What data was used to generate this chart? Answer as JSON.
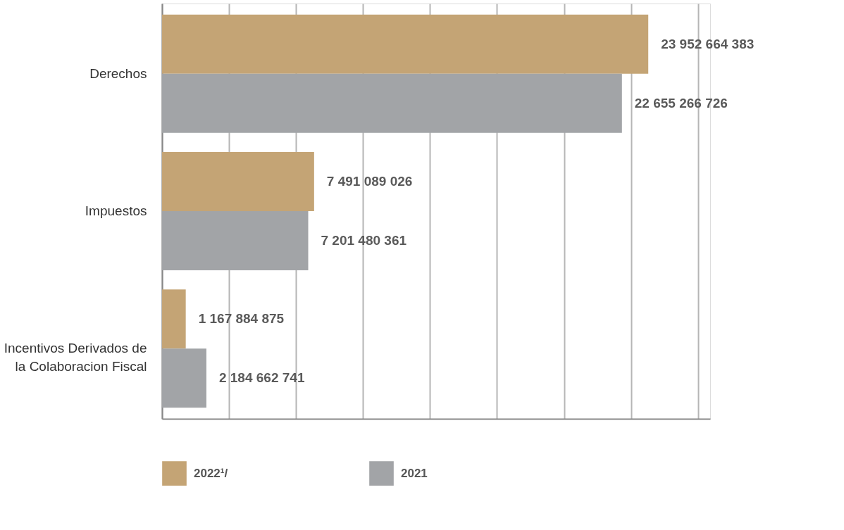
{
  "chart_data": {
    "type": "bar",
    "orientation": "horizontal",
    "categories": [
      "Derechos",
      "Impuestos",
      "Incentivos Derivados de la Colaboracion Fiscal"
    ],
    "series": [
      {
        "name": "2022¹/",
        "color": "#c4a475",
        "values": [
          23952664383,
          7491089026,
          1167884875
        ],
        "value_labels": [
          "23 952 664 383",
          "7 491 089 026",
          "1 167 884 875"
        ]
      },
      {
        "name": "2021",
        "color": "#a2a4a7",
        "values": [
          22655266726,
          7201480361,
          2184662741
        ],
        "value_labels": [
          "22 655 266 726",
          "7 201 480 361",
          "2 184 662 741"
        ]
      }
    ],
    "xlim": [
      0,
      27000000000
    ],
    "xticks": [
      {
        "value": 0,
        "label": null
      },
      {
        "value": 3300000000,
        "label": null
      },
      {
        "value": 6600000000,
        "label": null
      },
      {
        "value": 9900000000,
        "label": null
      },
      {
        "value": 13200000000,
        "label": null
      },
      {
        "value": 16500000000,
        "label": null
      },
      {
        "value": 19800000000,
        "label": null
      },
      {
        "value": 23100000000,
        "label": null
      },
      {
        "value": 26400000000,
        "label": null
      }
    ],
    "tick_labels": "y",
    "grid": "x",
    "legend": "bottom"
  }
}
